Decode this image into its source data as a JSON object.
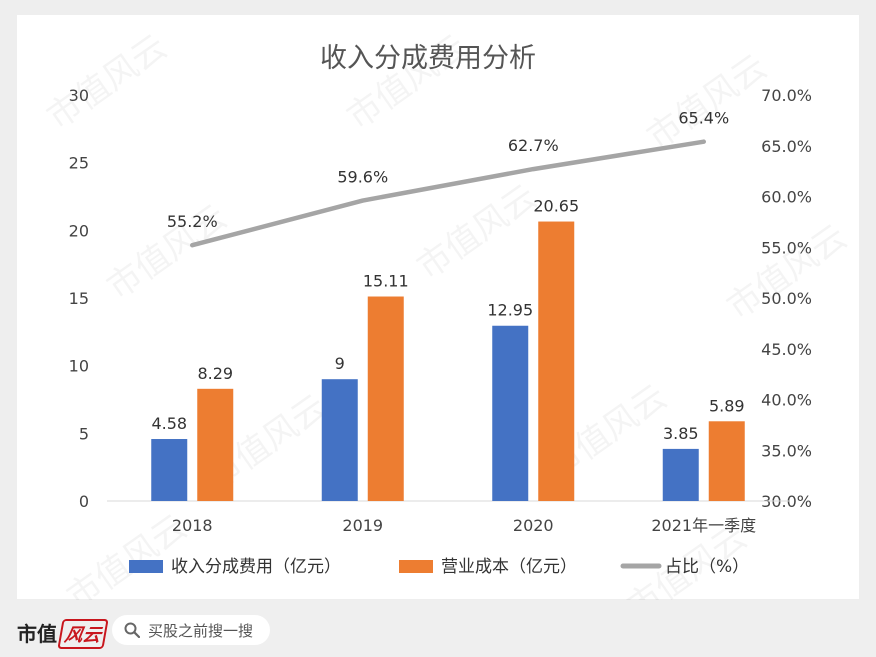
{
  "chart_data": {
    "type": "bar",
    "title": "收入分成费用分析",
    "categories": [
      "2018",
      "2019",
      "2020",
      "2021年一季度"
    ],
    "series": [
      {
        "name": "收入分成费用（亿元）",
        "values": [
          4.58,
          9,
          12.95,
          3.85
        ],
        "labels": [
          "4.58",
          "9",
          "12.95",
          "3.85"
        ],
        "color": "#4472c4"
      },
      {
        "name": "营业成本（亿元）",
        "values": [
          8.29,
          15.11,
          20.65,
          5.89
        ],
        "labels": [
          "8.29",
          "15.11",
          "20.65",
          "5.89"
        ],
        "color": "#ed7d31"
      }
    ],
    "line_series": {
      "name": "占比（%）",
      "values": [
        55.2,
        59.6,
        62.7,
        65.4
      ],
      "labels": [
        "55.2%",
        "59.6%",
        "62.7%",
        "65.4%"
      ],
      "color": "#a5a5a5",
      "axis": "secondary"
    },
    "ylim": [
      0,
      30
    ],
    "y_ticks": [
      "0",
      "5",
      "10",
      "15",
      "20",
      "25",
      "30"
    ],
    "y2lim": [
      30,
      70
    ],
    "y2_ticks": [
      "30.0%",
      "35.0%",
      "40.0%",
      "45.0%",
      "50.0%",
      "55.0%",
      "60.0%",
      "65.0%",
      "70.0%"
    ],
    "grid": false,
    "legend_position": "bottom"
  },
  "watermark": "市值风云",
  "footer": {
    "brand_text": "市值",
    "brand_logo_text": "风云",
    "search_placeholder": "买股之前搜一搜",
    "search_icon": "search-icon"
  }
}
